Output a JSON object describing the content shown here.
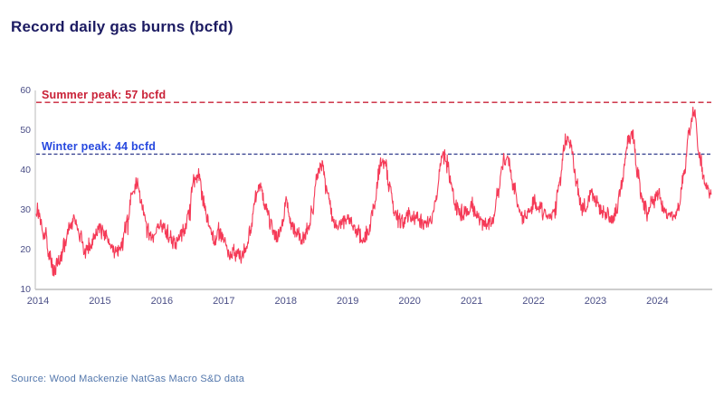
{
  "page": {
    "title": "Record daily gas burns (bcfd)",
    "source": "Source: Wood Mackenzie NatGas Macro S&D data"
  },
  "colors": {
    "series_line": "#f53a57",
    "summer_peak": "#c92137",
    "winter_peak_text": "#2648df",
    "winter_peak_line": "#3d4792",
    "axis_line": "#c6c6c6",
    "tick_label": "#4a4e86",
    "title_text": "#1c1b62",
    "source_text": "#5377ac"
  },
  "chart_data": {
    "type": "line",
    "title": "Record daily gas burns (bcfd)",
    "xlabel": "",
    "ylabel": "",
    "ylim": [
      10,
      60
    ],
    "y_ticks": [
      10,
      20,
      30,
      40,
      50,
      60
    ],
    "x_tick_labels": [
      "2014",
      "2015",
      "2016",
      "2017",
      "2018",
      "2019",
      "2020",
      "2021",
      "2022",
      "2023",
      "2024"
    ],
    "grid": false,
    "legend": "none",
    "annotations": [
      {
        "label": "Summer peak: 57 bcfd",
        "value": 57,
        "style": "dashed",
        "color": "#c92137"
      },
      {
        "label": "Winter peak: 44 bcfd",
        "value": 44,
        "style": "dashed",
        "color": "#2648df"
      }
    ],
    "series": [
      {
        "name": "Daily gas burns (bcfd)",
        "start": "2014-01",
        "end": "2024-11",
        "anchor_cadence": "monthly-mean (values estimated from plot; daily jitter overlaid)",
        "monthly_values": [
          29,
          24,
          19,
          15,
          17,
          21,
          26,
          27.5,
          24,
          19,
          21,
          23,
          26,
          24,
          21,
          19,
          21,
          26,
          34,
          37,
          31,
          25,
          23,
          25,
          26,
          24,
          22,
          22,
          24,
          29,
          37,
          38.5,
          32,
          26,
          22,
          24,
          22,
          18.5,
          19,
          18,
          20,
          25,
          33,
          36,
          30,
          26,
          23,
          26,
          32,
          26,
          24,
          23,
          25,
          30,
          39,
          41,
          34,
          27,
          26,
          27,
          28,
          26,
          24,
          23,
          25,
          31,
          41,
          42.5,
          36,
          29,
          27,
          28,
          29,
          28,
          27,
          26,
          27,
          33,
          43,
          43.5,
          36,
          30,
          28,
          30,
          30,
          28,
          27,
          26,
          28,
          35,
          42,
          43,
          36,
          30,
          28,
          30,
          32,
          30,
          29,
          28,
          30,
          37,
          47,
          47,
          38,
          31,
          30,
          35,
          32,
          30,
          29,
          28,
          30,
          36,
          47,
          49,
          40,
          32,
          30,
          32,
          34,
          31,
          29,
          28,
          31,
          39,
          50,
          54,
          44,
          37,
          34
        ],
        "daily_noise_amplitude": 2.4,
        "observed_extremes": {
          "max": 57,
          "min": 12.5
        }
      }
    ],
    "source": "Source: Wood Mackenzie NatGas Macro S&D data"
  }
}
